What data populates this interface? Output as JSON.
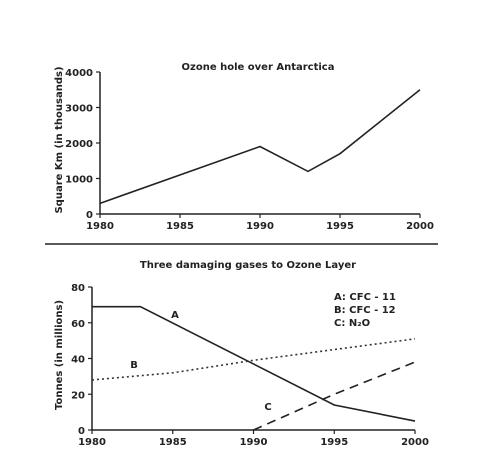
{
  "chart_data": [
    {
      "type": "line",
      "title": "Ozone hole over Antarctica",
      "xlabel": "",
      "ylabel": "Square Km (in thousands)",
      "xlim": [
        1980,
        2000
      ],
      "ylim": [
        0,
        4000
      ],
      "x_ticks": [
        1980,
        1985,
        1990,
        1995,
        2000
      ],
      "y_ticks": [
        0,
        1000,
        2000,
        3000,
        4000
      ],
      "grid": false,
      "series": [
        {
          "x": [
            1980,
            1990,
            1993,
            1995,
            2000
          ],
          "y": [
            300,
            1900,
            1200,
            1700,
            3500
          ],
          "style": "solid",
          "color": "#222222"
        }
      ]
    },
    {
      "type": "line",
      "title": "Three damaging gases to Ozone Layer",
      "xlabel": "",
      "ylabel": "Tonnes (in millions)",
      "xlim": [
        1980,
        2000
      ],
      "ylim": [
        0,
        80
      ],
      "x_ticks": [
        1980,
        1985,
        1990,
        1995,
        2000
      ],
      "y_ticks": [
        0,
        20,
        40,
        60,
        80
      ],
      "grid": false,
      "legend": {
        "placement": "top-right",
        "entries": [
          "A: CFC - 11",
          "B: CFC - 12",
          "C: N₂O"
        ]
      },
      "series": [
        {
          "name": "A",
          "x": [
            1980,
            1983,
            1995,
            2000
          ],
          "y": [
            69,
            69,
            14,
            5
          ],
          "style": "solid",
          "color": "#222222"
        },
        {
          "name": "B",
          "x": [
            1980,
            1985,
            1990,
            1995,
            2000
          ],
          "y": [
            28,
            32,
            39,
            45,
            51
          ],
          "style": "dotted",
          "color": "#333333"
        },
        {
          "name": "C",
          "x": [
            1990,
            1995,
            2000
          ],
          "y": [
            0,
            20,
            38
          ],
          "style": "dashed",
          "color": "#222222"
        }
      ]
    }
  ]
}
